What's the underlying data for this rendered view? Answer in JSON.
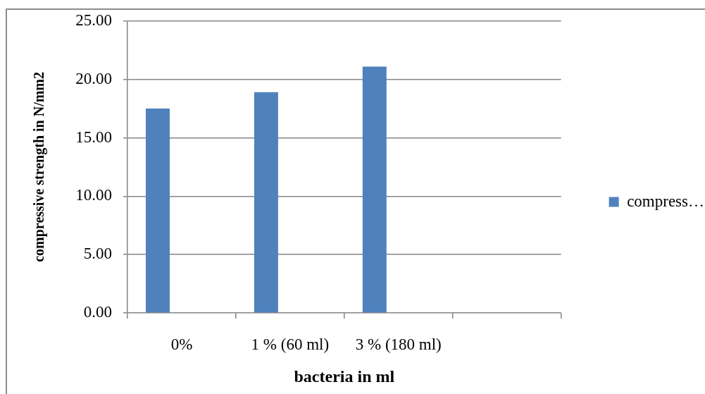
{
  "chart_data": {
    "type": "bar",
    "categories": [
      "0%",
      "1 % (60 ml)",
      "3 % (180 ml)",
      null
    ],
    "series": [
      {
        "name": "compress…",
        "color": "#4f81bd",
        "values": [
          17.5,
          18.9,
          21.1,
          null
        ]
      }
    ],
    "xlabel": "bacteria in ml",
    "ylabel": "compressive strength in N/mm2",
    "ylim": [
      0,
      25
    ],
    "yticks": [
      {
        "value": 0,
        "label": "0.00"
      },
      {
        "value": 5,
        "label": "5.00"
      },
      {
        "value": 10,
        "label": "10.00"
      },
      {
        "value": 15,
        "label": "15.00"
      },
      {
        "value": 20,
        "label": "20.00"
      },
      {
        "value": 25,
        "label": "25.00"
      }
    ],
    "grid": "y",
    "legend": "right"
  }
}
